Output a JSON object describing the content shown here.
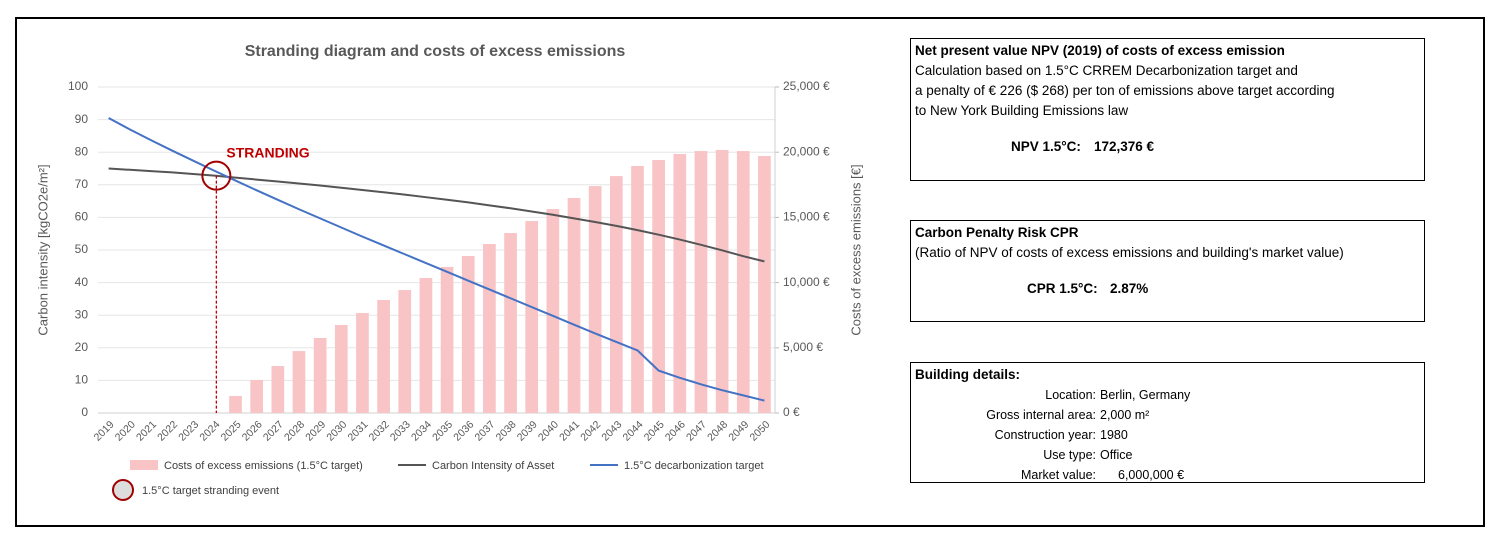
{
  "chart_data": {
    "type": "bar-line",
    "title": "Stranding diagram and costs of excess emissions",
    "ylabel": "Carbon intensity [kgCO2e/m²]",
    "y2label": "Costs of excess emissions [€]",
    "categories": [
      "2019",
      "2020",
      "2021",
      "2022",
      "2023",
      "2024",
      "2025",
      "2026",
      "2027",
      "2028",
      "2029",
      "2030",
      "2031",
      "2032",
      "2033",
      "2034",
      "2035",
      "2036",
      "2037",
      "2038",
      "2039",
      "2040",
      "2041",
      "2042",
      "2043",
      "2044",
      "2045",
      "2046",
      "2047",
      "2048",
      "2049",
      "2050"
    ],
    "ylim": [
      0,
      100
    ],
    "yticks": [
      0,
      10,
      20,
      30,
      40,
      50,
      60,
      70,
      80,
      90,
      100
    ],
    "y2lim": [
      0,
      25000
    ],
    "y2ticks": [
      {
        "value": 0,
        "label": "0 €"
      },
      {
        "value": 5000,
        "label": "5,000 €"
      },
      {
        "value": 10000,
        "label": "10,000 €"
      },
      {
        "value": 15000,
        "label": "15,000 €"
      },
      {
        "value": 20000,
        "label": "20,000 €"
      },
      {
        "value": 25000,
        "label": "25,000 €"
      }
    ],
    "series": [
      {
        "name": "Costs of excess emissions (1.5°C target)",
        "type": "bar",
        "axis": "y2",
        "color": "#f8c4c6",
        "values": [
          0,
          0,
          0,
          0,
          0,
          0,
          1300,
          2530,
          3600,
          4750,
          5750,
          6750,
          7670,
          8670,
          9430,
          10350,
          11200,
          12040,
          12960,
          13800,
          14720,
          15640,
          16490,
          17400,
          18170,
          18940,
          19400,
          19860,
          20090,
          20170,
          20090,
          19710
        ]
      },
      {
        "name": "Carbon Intensity of Asset",
        "type": "line",
        "color": "#555555",
        "values": [
          75,
          74.6,
          74.2,
          73.8,
          73.3,
          72.8,
          72.2,
          71.6,
          71.0,
          70.4,
          69.8,
          69.1,
          68.4,
          67.7,
          67.0,
          66.2,
          65.4,
          64.6,
          63.7,
          62.8,
          61.8,
          60.8,
          59.7,
          58.6,
          57.4,
          56.1,
          54.7,
          53.2,
          51.6,
          49.9,
          48.1,
          46.5
        ]
      },
      {
        "name": "1.5°C decarbonization target",
        "type": "line",
        "color": "#4472c4",
        "values": [
          90.5,
          87,
          83.7,
          80.5,
          77.4,
          74.3,
          71.3,
          68.3,
          65.4,
          62.5,
          59.7,
          56.9,
          54.1,
          51.4,
          48.7,
          46.0,
          43.3,
          40.6,
          37.9,
          35.2,
          32.5,
          29.8,
          27.1,
          24.4,
          21.8,
          19.2,
          13,
          10.8,
          8.8,
          7,
          5.4,
          3.8
        ]
      }
    ],
    "annotation": {
      "text": "STRANDING",
      "x": "2024",
      "legend": "1.5°C target stranding event",
      "color": "#c00000"
    }
  },
  "panels": [
    {
      "title": "Net present value NPV (2019) of costs of excess emission",
      "lines": [
        "Calculation based on 1.5°C CRREM Decarbonization target and",
        "a penalty of € 226 ($ 268) per ton of emissions above target according",
        "to New York Building Emissions law"
      ],
      "key": "NPV 1.5°C:",
      "value": "172,376 €"
    },
    {
      "title": "Carbon Penalty Risk CPR",
      "lines": [
        "(Ratio of NPV of costs of excess emissions and building's market value)"
      ],
      "key": "CPR 1.5°C:",
      "value": "2.87%"
    }
  ],
  "building": {
    "title": "Building details:",
    "rows": [
      [
        "Location:",
        "Berlin, Germany"
      ],
      [
        "Gross internal area:",
        "2,000 m²"
      ],
      [
        "Construction year:",
        "1980"
      ],
      [
        "Use type:",
        "Office"
      ],
      [
        "Market value:",
        "6,000,000 €"
      ]
    ]
  }
}
